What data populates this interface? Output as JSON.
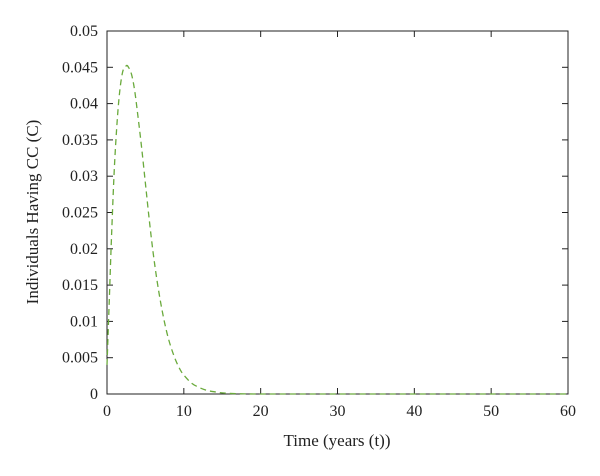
{
  "chart_data": {
    "type": "line",
    "xlabel": "Time (years (t))",
    "ylabel": "Individuals Having CC (C)",
    "xlim": [
      0,
      60
    ],
    "ylim": [
      0,
      0.05
    ],
    "x_ticks": [
      "0",
      "10",
      "20",
      "30",
      "40",
      "50",
      "60"
    ],
    "y_ticks": [
      "0",
      "0.005",
      "0.01",
      "0.015",
      "0.02",
      "0.025",
      "0.03",
      "0.035",
      "0.04",
      "0.045",
      "0.05"
    ],
    "grid": false,
    "series": [
      {
        "color": "#6aaa3c",
        "line_style": "dashed",
        "x": [
          0,
          0.3,
          0.6,
          1.0,
          1.5,
          2.0,
          2.5,
          2.8,
          3.2,
          3.6,
          4.0,
          4.5,
          5.0,
          5.5,
          6.0,
          6.5,
          7.0,
          7.5,
          8.0,
          8.5,
          9.0,
          9.5,
          10.0,
          11.0,
          12.0,
          13.0,
          14.0,
          15.0,
          16.0,
          17.0,
          18.0,
          20.0,
          25.0,
          30.0,
          40.0,
          50.0,
          60.0
        ],
        "y": [
          0.004,
          0.013,
          0.022,
          0.032,
          0.04,
          0.0442,
          0.0452,
          0.045,
          0.044,
          0.0418,
          0.0385,
          0.034,
          0.029,
          0.024,
          0.0195,
          0.0157,
          0.0125,
          0.0098,
          0.0076,
          0.0059,
          0.0045,
          0.0034,
          0.0026,
          0.0015,
          0.0009,
          0.0005,
          0.0003,
          0.00015,
          8e-05,
          4e-05,
          2e-05,
          0.0,
          0.0,
          0.0,
          0.0,
          0.0,
          0.0
        ]
      }
    ]
  }
}
